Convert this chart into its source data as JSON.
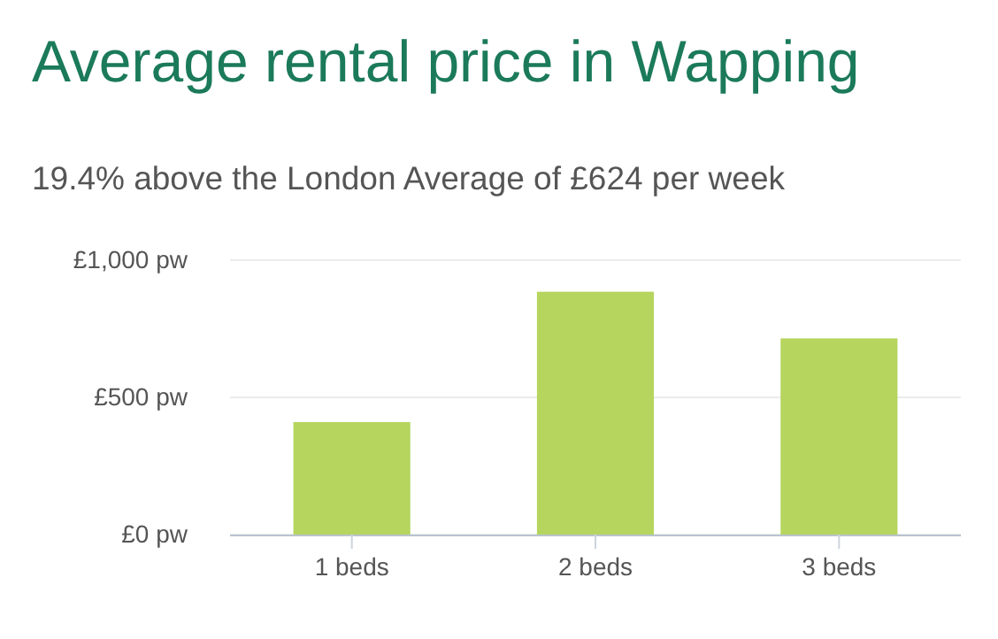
{
  "chart_data": {
    "type": "bar",
    "title": "Average rental price in Wapping",
    "subtitle": "19.4% above the London Average of £624 per week",
    "categories": [
      "1 beds",
      "2 beds",
      "3 beds"
    ],
    "values": [
      410,
      885,
      715
    ],
    "color": "#b5d55e",
    "ylim": [
      0,
      1000
    ],
    "yticks": [
      {
        "value": 0,
        "label": "£0 pw"
      },
      {
        "value": 500,
        "label": "£500 pw"
      },
      {
        "value": 1000,
        "label": "£1,000 pw"
      }
    ],
    "grid": "y"
  }
}
